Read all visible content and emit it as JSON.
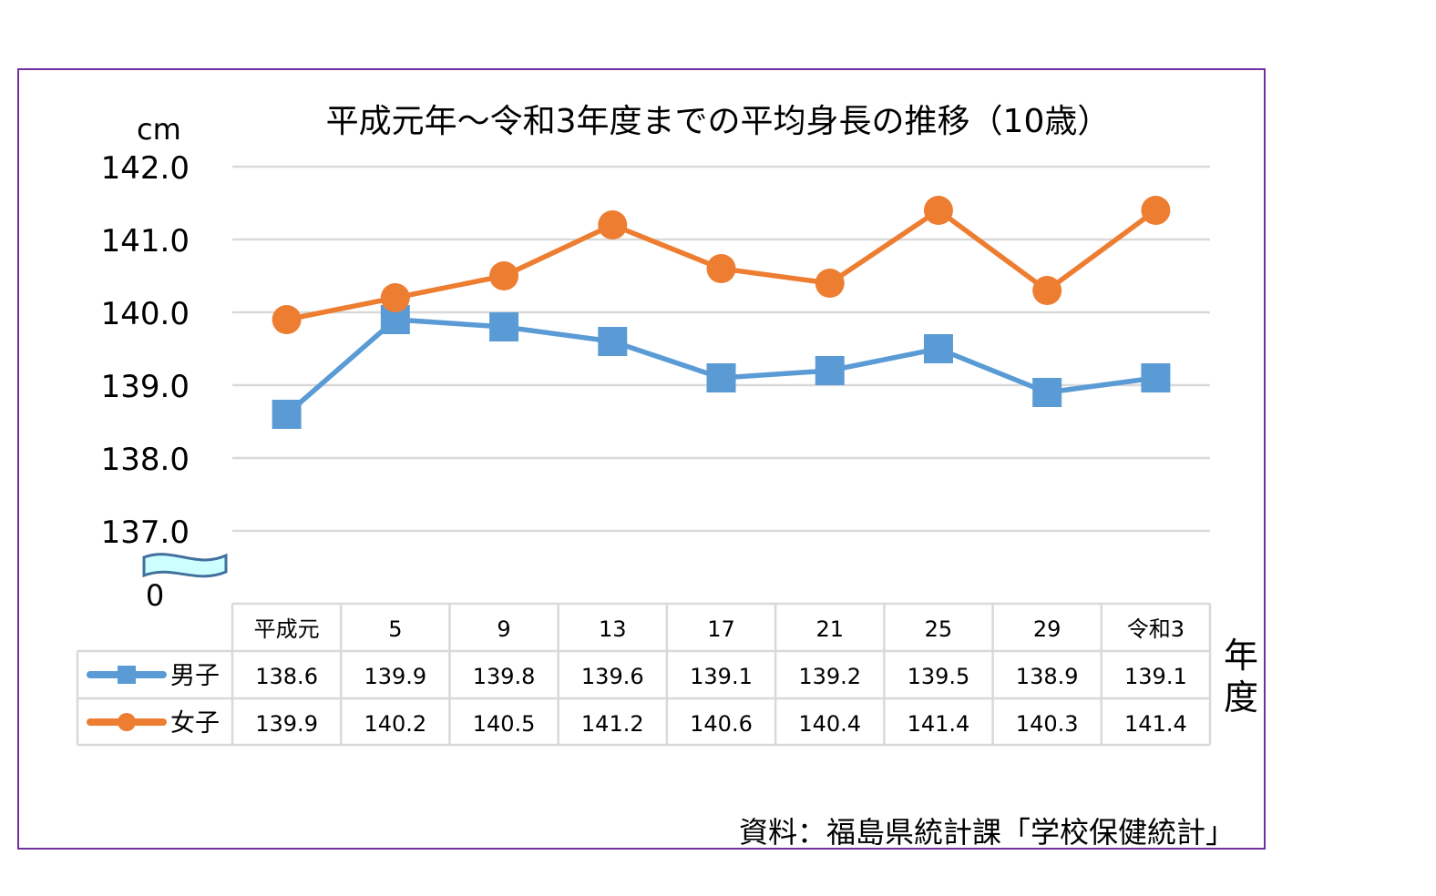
{
  "chart_data": {
    "type": "line",
    "title": "平成元年～令和3年度までの平均身長の推移（10歳）",
    "ylabel": "cm",
    "xlabel": "年度",
    "ylim": [
      137.0,
      142.0
    ],
    "y_ticks": [
      "142.0",
      "141.0",
      "140.0",
      "139.0",
      "138.0",
      "137.0"
    ],
    "y_break_label": "0",
    "grid": true,
    "legend": "data-table",
    "categories": [
      "平成元",
      "5",
      "9",
      "13",
      "17",
      "21",
      "25",
      "29",
      "令和3"
    ],
    "series": [
      {
        "name": "男子",
        "marker": "square",
        "color": "#5b9bd5",
        "values": [
          138.6,
          139.9,
          139.8,
          139.6,
          139.1,
          139.2,
          139.5,
          138.9,
          139.1
        ]
      },
      {
        "name": "女子",
        "marker": "circle",
        "color": "#ed7d31",
        "values": [
          139.9,
          140.2,
          140.5,
          141.2,
          140.6,
          140.4,
          141.4,
          140.3,
          141.4
        ]
      }
    ],
    "source": "資料：福島県統計課「学校保健統計」"
  }
}
